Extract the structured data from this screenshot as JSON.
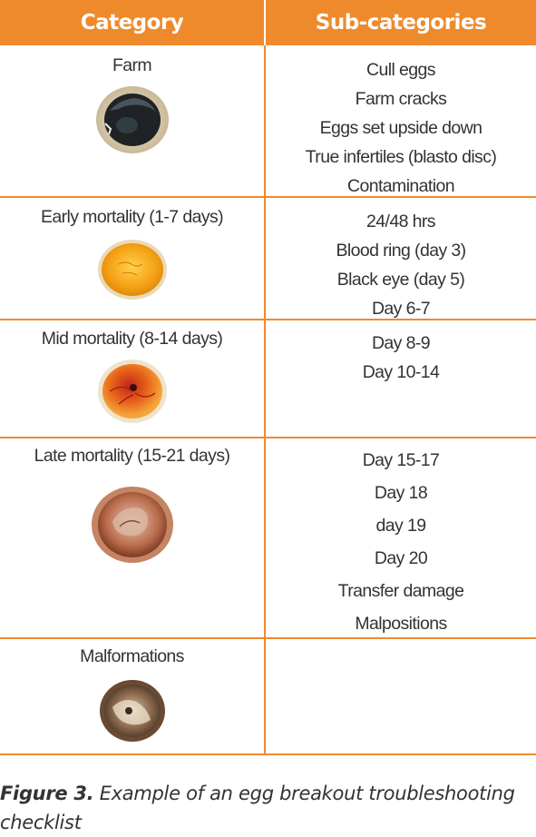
{
  "header": {
    "category_label": "Category",
    "subcategories_label": "Sub-categories"
  },
  "rows": [
    {
      "category": "Farm",
      "image": "cracked-egg-photo",
      "subcategories": [
        "Cull eggs",
        "Farm cracks",
        "Eggs set upside down",
        "True infertiles (blasto disc)",
        "Contamination"
      ]
    },
    {
      "category": "Early mortality (1-7 days)",
      "image": "early-embryo-egg-photo",
      "subcategories": [
        "24/48 hrs",
        "Blood ring (day 3)",
        "Black eye (day 5)",
        "Day 6-7"
      ]
    },
    {
      "category": "Mid mortality (8-14 days)",
      "image": "mid-embryo-egg-photo",
      "subcategories": [
        "Day 8-9",
        "Day 10-14"
      ]
    },
    {
      "category": "Late mortality (15-21 days)",
      "image": "late-embryo-egg-photo",
      "subcategories": [
        "Day 15-17",
        "Day 18",
        "day 19",
        "Day 20",
        "Transfer damage",
        "Malpositions"
      ]
    },
    {
      "category": "Malformations",
      "image": "malformed-embryo-egg-photo",
      "subcategories": []
    }
  ],
  "caption": {
    "label": "Figure 3.",
    "text": " Example of an egg breakout troubleshooting checklist"
  },
  "colors": {
    "accent": "#ef8a2c",
    "text": "#333333"
  }
}
